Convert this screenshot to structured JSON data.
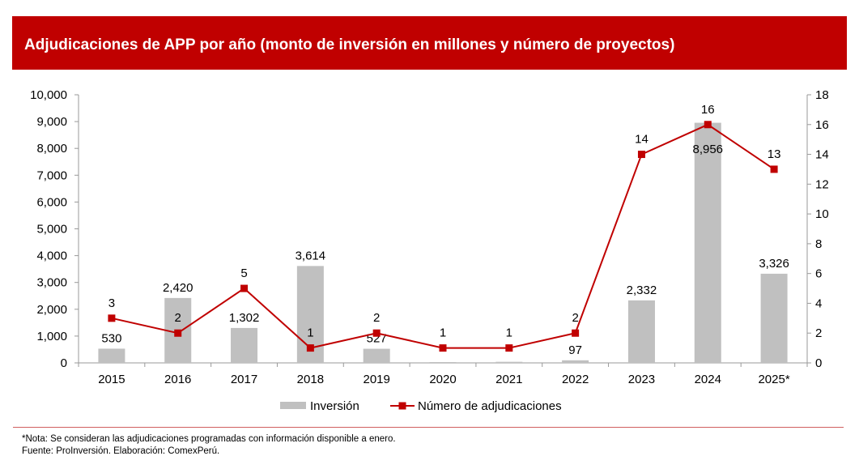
{
  "chart_data": {
    "type": "bar+line",
    "title": "Adjudicaciones de APP por año (monto de inversión en millones y número de proyectos)",
    "categories": [
      "2015",
      "2016",
      "2017",
      "2018",
      "2019",
      "2020",
      "2021",
      "2022",
      "2023",
      "2024",
      "2025*"
    ],
    "series": [
      {
        "name": "Inversión",
        "type": "bar",
        "axis": "left",
        "color": "#C0C0C0",
        "values": [
          530,
          2420,
          1302,
          3614,
          527,
          30,
          40,
          97,
          2332,
          8956,
          3326
        ],
        "labels": [
          "530",
          "2,420",
          "1,302",
          "3,614",
          "527",
          null,
          null,
          "97",
          "2,332",
          "8,956",
          "3,326"
        ]
      },
      {
        "name": "Número de adjudicaciones",
        "type": "line",
        "axis": "right",
        "color": "#C00000",
        "values": [
          3,
          2,
          5,
          1,
          2,
          1,
          1,
          2,
          14,
          16,
          13
        ],
        "labels": [
          "3",
          "2",
          "5",
          "1",
          "2",
          "1",
          "1",
          "2",
          "14",
          "16",
          "13"
        ]
      }
    ],
    "ylim_left": [
      0,
      10000
    ],
    "yticks_left": [
      "0",
      "1,000",
      "2,000",
      "3,000",
      "4,000",
      "5,000",
      "6,000",
      "7,000",
      "8,000",
      "9,000",
      "10,000"
    ],
    "ylim_right": [
      0,
      18
    ],
    "yticks_right": [
      "0",
      "2",
      "4",
      "6",
      "8",
      "10",
      "12",
      "14",
      "16",
      "18"
    ],
    "legend": "bottom"
  },
  "notes": {
    "note": "*Nota: Se consideran las adjudicaciones programadas con información disponible a enero.",
    "source": "Fuente: ProInversión. Elaboración: ComexPerú."
  }
}
